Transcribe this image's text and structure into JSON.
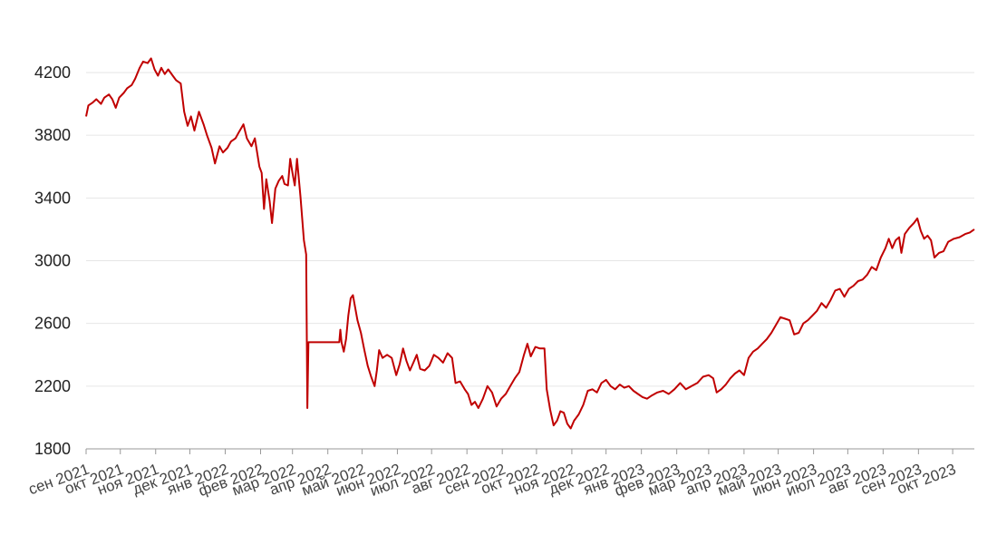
{
  "chart_data": {
    "type": "line",
    "title": "",
    "xlabel": "",
    "ylabel": "",
    "ylim": [
      1800,
      4200
    ],
    "y_ticks": [
      "1800",
      "2200",
      "2600",
      "3000",
      "3400",
      "3800",
      "4200"
    ],
    "x_tick_labels": [
      "сен 2021",
      "окт 2021",
      "ноя 2021",
      "дек 2021",
      "янв 2022",
      "фев 2022",
      "мар 2022",
      "апр 2022",
      "май 2022",
      "июн 2022",
      "июл 2022",
      "авг 2022",
      "сен 2022",
      "окт 2022",
      "ноя 2022",
      "дек 2022",
      "янв 2023",
      "фев 2023",
      "мар 2023",
      "апр 2023",
      "май 2023",
      "июн 2023",
      "июл 2023",
      "авг 2023",
      "сен 2023",
      "окт 2023"
    ],
    "grid": true,
    "line_color": "#c00000",
    "x_range": [
      "2021-09-01",
      "2023-10-20"
    ],
    "series": [
      {
        "points": [
          [
            "2021-09-01",
            3920
          ],
          [
            "2021-09-03",
            3990
          ],
          [
            "2021-09-07",
            4010
          ],
          [
            "2021-09-10",
            4030
          ],
          [
            "2021-09-14",
            4000
          ],
          [
            "2021-09-17",
            4040
          ],
          [
            "2021-09-21",
            4060
          ],
          [
            "2021-09-24",
            4030
          ],
          [
            "2021-09-27",
            3975
          ],
          [
            "2021-09-30",
            4040
          ],
          [
            "2021-10-04",
            4070
          ],
          [
            "2021-10-07",
            4100
          ],
          [
            "2021-10-11",
            4120
          ],
          [
            "2021-10-14",
            4160
          ],
          [
            "2021-10-18",
            4230
          ],
          [
            "2021-10-21",
            4270
          ],
          [
            "2021-10-25",
            4260
          ],
          [
            "2021-10-28",
            4290
          ],
          [
            "2021-10-31",
            4220
          ],
          [
            "2021-11-03",
            4180
          ],
          [
            "2021-11-06",
            4230
          ],
          [
            "2021-11-09",
            4190
          ],
          [
            "2021-11-12",
            4220
          ],
          [
            "2021-11-16",
            4180
          ],
          [
            "2021-11-19",
            4150
          ],
          [
            "2021-11-23",
            4130
          ],
          [
            "2021-11-26",
            3950
          ],
          [
            "2021-11-29",
            3860
          ],
          [
            "2021-12-02",
            3920
          ],
          [
            "2021-12-05",
            3830
          ],
          [
            "2021-12-09",
            3950
          ],
          [
            "2021-12-13",
            3870
          ],
          [
            "2021-12-16",
            3800
          ],
          [
            "2021-12-20",
            3720
          ],
          [
            "2021-12-23",
            3620
          ],
          [
            "2021-12-27",
            3730
          ],
          [
            "2021-12-30",
            3690
          ],
          [
            "2022-01-03",
            3720
          ],
          [
            "2022-01-06",
            3760
          ],
          [
            "2022-01-10",
            3780
          ],
          [
            "2022-01-13",
            3820
          ],
          [
            "2022-01-17",
            3870
          ],
          [
            "2022-01-20",
            3780
          ],
          [
            "2022-01-24",
            3730
          ],
          [
            "2022-01-27",
            3780
          ],
          [
            "2022-01-31",
            3600
          ],
          [
            "2022-02-02",
            3560
          ],
          [
            "2022-02-04",
            3330
          ],
          [
            "2022-02-06",
            3520
          ],
          [
            "2022-02-09",
            3380
          ],
          [
            "2022-02-11",
            3240
          ],
          [
            "2022-02-14",
            3460
          ],
          [
            "2022-02-17",
            3510
          ],
          [
            "2022-02-20",
            3540
          ],
          [
            "2022-02-22",
            3490
          ],
          [
            "2022-02-25",
            3480
          ],
          [
            "2022-02-27",
            3650
          ],
          [
            "2022-03-01",
            3560
          ],
          [
            "2022-03-03",
            3480
          ],
          [
            "2022-03-05",
            3650
          ],
          [
            "2022-03-08",
            3410
          ],
          [
            "2022-03-11",
            3130
          ],
          [
            "2022-03-13",
            3040
          ],
          [
            "2022-03-14",
            2060
          ],
          [
            "2022-03-15",
            2480
          ],
          [
            "2022-03-22",
            2480
          ],
          [
            "2022-03-30",
            2480
          ],
          [
            "2022-04-06",
            2480
          ],
          [
            "2022-04-11",
            2480
          ],
          [
            "2022-04-12",
            2560
          ],
          [
            "2022-04-13",
            2480
          ],
          [
            "2022-04-15",
            2420
          ],
          [
            "2022-04-17",
            2500
          ],
          [
            "2022-04-19",
            2650
          ],
          [
            "2022-04-21",
            2760
          ],
          [
            "2022-04-23",
            2780
          ],
          [
            "2022-04-25",
            2700
          ],
          [
            "2022-04-27",
            2620
          ],
          [
            "2022-04-30",
            2540
          ],
          [
            "2022-05-03",
            2430
          ],
          [
            "2022-05-06",
            2330
          ],
          [
            "2022-05-09",
            2260
          ],
          [
            "2022-05-12",
            2200
          ],
          [
            "2022-05-14",
            2300
          ],
          [
            "2022-05-16",
            2430
          ],
          [
            "2022-05-19",
            2380
          ],
          [
            "2022-05-23",
            2400
          ],
          [
            "2022-05-27",
            2380
          ],
          [
            "2022-05-31",
            2270
          ],
          [
            "2022-06-03",
            2340
          ],
          [
            "2022-06-06",
            2440
          ],
          [
            "2022-06-09",
            2360
          ],
          [
            "2022-06-12",
            2300
          ],
          [
            "2022-06-15",
            2350
          ],
          [
            "2022-06-18",
            2400
          ],
          [
            "2022-06-21",
            2310
          ],
          [
            "2022-06-25",
            2300
          ],
          [
            "2022-06-29",
            2330
          ],
          [
            "2022-07-03",
            2400
          ],
          [
            "2022-07-07",
            2380
          ],
          [
            "2022-07-11",
            2350
          ],
          [
            "2022-07-15",
            2410
          ],
          [
            "2022-07-19",
            2380
          ],
          [
            "2022-07-22",
            2220
          ],
          [
            "2022-07-26",
            2230
          ],
          [
            "2022-07-30",
            2180
          ],
          [
            "2022-08-02",
            2150
          ],
          [
            "2022-08-05",
            2080
          ],
          [
            "2022-08-08",
            2100
          ],
          [
            "2022-08-11",
            2060
          ],
          [
            "2022-08-15",
            2120
          ],
          [
            "2022-08-19",
            2200
          ],
          [
            "2022-08-23",
            2160
          ],
          [
            "2022-08-27",
            2070
          ],
          [
            "2022-08-31",
            2120
          ],
          [
            "2022-09-04",
            2150
          ],
          [
            "2022-09-08",
            2200
          ],
          [
            "2022-09-12",
            2250
          ],
          [
            "2022-09-16",
            2290
          ],
          [
            "2022-09-20",
            2400
          ],
          [
            "2022-09-23",
            2470
          ],
          [
            "2022-09-26",
            2390
          ],
          [
            "2022-09-30",
            2450
          ],
          [
            "2022-10-04",
            2440
          ],
          [
            "2022-10-08",
            2440
          ],
          [
            "2022-10-10",
            2180
          ],
          [
            "2022-10-13",
            2050
          ],
          [
            "2022-10-16",
            1950
          ],
          [
            "2022-10-19",
            1980
          ],
          [
            "2022-10-22",
            2040
          ],
          [
            "2022-10-25",
            2030
          ],
          [
            "2022-10-28",
            1960
          ],
          [
            "2022-10-31",
            1930
          ],
          [
            "2022-11-03",
            1980
          ],
          [
            "2022-11-07",
            2020
          ],
          [
            "2022-11-11",
            2080
          ],
          [
            "2022-11-15",
            2170
          ],
          [
            "2022-11-19",
            2180
          ],
          [
            "2022-11-23",
            2160
          ],
          [
            "2022-11-27",
            2220
          ],
          [
            "2022-12-01",
            2240
          ],
          [
            "2022-12-05",
            2200
          ],
          [
            "2022-12-09",
            2180
          ],
          [
            "2022-12-13",
            2210
          ],
          [
            "2022-12-17",
            2190
          ],
          [
            "2022-12-21",
            2200
          ],
          [
            "2022-12-25",
            2170
          ],
          [
            "2022-12-29",
            2150
          ],
          [
            "2023-01-02",
            2130
          ],
          [
            "2023-01-06",
            2120
          ],
          [
            "2023-01-10",
            2140
          ],
          [
            "2023-01-15",
            2160
          ],
          [
            "2023-01-20",
            2170
          ],
          [
            "2023-01-25",
            2150
          ],
          [
            "2023-01-30",
            2180
          ],
          [
            "2023-02-04",
            2220
          ],
          [
            "2023-02-09",
            2180
          ],
          [
            "2023-02-14",
            2200
          ],
          [
            "2023-02-19",
            2220
          ],
          [
            "2023-02-24",
            2260
          ],
          [
            "2023-03-01",
            2270
          ],
          [
            "2023-03-05",
            2250
          ],
          [
            "2023-03-08",
            2160
          ],
          [
            "2023-03-12",
            2180
          ],
          [
            "2023-03-16",
            2210
          ],
          [
            "2023-03-20",
            2250
          ],
          [
            "2023-03-24",
            2280
          ],
          [
            "2023-03-28",
            2300
          ],
          [
            "2023-04-01",
            2270
          ],
          [
            "2023-04-05",
            2380
          ],
          [
            "2023-04-09",
            2420
          ],
          [
            "2023-04-13",
            2440
          ],
          [
            "2023-04-17",
            2470
          ],
          [
            "2023-04-21",
            2500
          ],
          [
            "2023-04-25",
            2540
          ],
          [
            "2023-04-29",
            2590
          ],
          [
            "2023-05-03",
            2640
          ],
          [
            "2023-05-07",
            2630
          ],
          [
            "2023-05-11",
            2620
          ],
          [
            "2023-05-15",
            2530
          ],
          [
            "2023-05-19",
            2540
          ],
          [
            "2023-05-23",
            2600
          ],
          [
            "2023-05-27",
            2620
          ],
          [
            "2023-05-31",
            2650
          ],
          [
            "2023-06-04",
            2680
          ],
          [
            "2023-06-08",
            2730
          ],
          [
            "2023-06-12",
            2700
          ],
          [
            "2023-06-16",
            2750
          ],
          [
            "2023-06-20",
            2810
          ],
          [
            "2023-06-24",
            2820
          ],
          [
            "2023-06-28",
            2770
          ],
          [
            "2023-07-02",
            2820
          ],
          [
            "2023-07-06",
            2840
          ],
          [
            "2023-07-10",
            2870
          ],
          [
            "2023-07-14",
            2880
          ],
          [
            "2023-07-18",
            2910
          ],
          [
            "2023-07-22",
            2960
          ],
          [
            "2023-07-26",
            2940
          ],
          [
            "2023-07-30",
            3020
          ],
          [
            "2023-08-03",
            3080
          ],
          [
            "2023-08-06",
            3140
          ],
          [
            "2023-08-09",
            3080
          ],
          [
            "2023-08-12",
            3130
          ],
          [
            "2023-08-15",
            3150
          ],
          [
            "2023-08-17",
            3050
          ],
          [
            "2023-08-20",
            3170
          ],
          [
            "2023-08-24",
            3210
          ],
          [
            "2023-08-28",
            3240
          ],
          [
            "2023-08-31",
            3270
          ],
          [
            "2023-09-03",
            3190
          ],
          [
            "2023-09-06",
            3140
          ],
          [
            "2023-09-09",
            3160
          ],
          [
            "2023-09-12",
            3130
          ],
          [
            "2023-09-15",
            3020
          ],
          [
            "2023-09-19",
            3050
          ],
          [
            "2023-09-23",
            3060
          ],
          [
            "2023-09-27",
            3120
          ],
          [
            "2023-10-02",
            3140
          ],
          [
            "2023-10-07",
            3150
          ],
          [
            "2023-10-12",
            3170
          ],
          [
            "2023-10-16",
            3180
          ],
          [
            "2023-10-20",
            3200
          ]
        ]
      }
    ]
  }
}
